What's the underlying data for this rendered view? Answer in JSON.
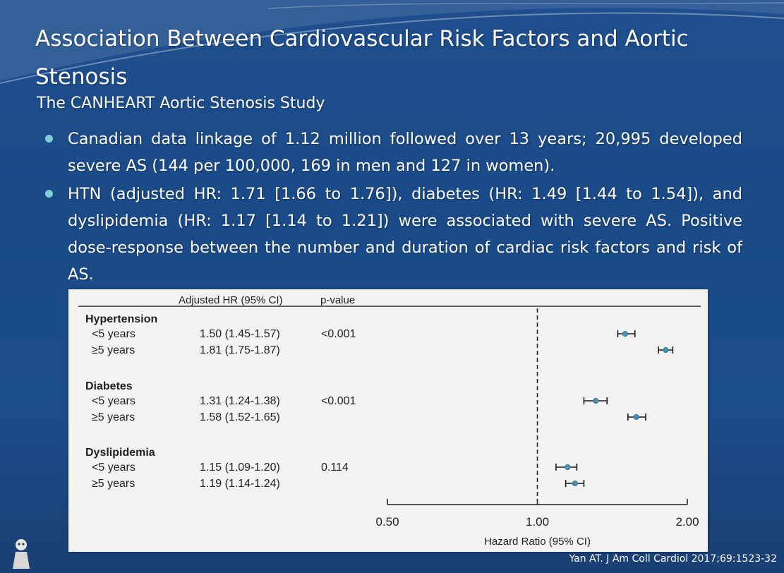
{
  "slide": {
    "title": "Association Between Cardiovascular Risk Factors and Aortic Stenosis",
    "subtitle": "The CANHEART Aortic Stenosis Study",
    "bullets": [
      "Canadian data linkage of 1.12 million followed over 13 years; 20,995 developed severe AS (144 per 100,000, 169 in men and 127 in women).",
      "HTN (adjusted HR: 1.71 [1.66 to 1.76]), diabetes (HR: 1.49 [1.44 to 1.54]), and dyslipidemia (HR: 1.17 [1.14 to 1.21]) were associated with severe AS. Positive dose-response between the number and duration of cardiac risk factors and risk of AS."
    ],
    "citation": "Yan AT. J Am Coll Cardiol 2017;69:1523-32",
    "bullet_color": "#7fd0d6"
  },
  "forest": {
    "header_hr": "Adjusted HR (95% CI)",
    "header_p": "p-value",
    "x_title": "Hazard Ratio (95% CI)",
    "x_ticks": [
      "0.50",
      "1.00",
      "2.00"
    ],
    "x_tick_values": [
      0.5,
      1.0,
      2.0
    ],
    "x_scale": "log",
    "x_range": [
      0.5,
      2.0
    ],
    "reference_value": 1.0,
    "marker_color": "#4a90b8",
    "groups": [
      {
        "name": "Hypertension",
        "p_value": "<0.001",
        "rows": [
          {
            "label": "<5 years",
            "ci_text": "1.50 (1.45-1.57)",
            "hr": 1.5,
            "lo": 1.45,
            "hi": 1.57
          },
          {
            "label": "≥5 years",
            "ci_text": "1.81 (1.75-1.87)",
            "hr": 1.81,
            "lo": 1.75,
            "hi": 1.87
          }
        ]
      },
      {
        "name": "Diabetes",
        "p_value": "<0.001",
        "rows": [
          {
            "label": "<5 years",
            "ci_text": "1.31 (1.24-1.38)",
            "hr": 1.31,
            "lo": 1.24,
            "hi": 1.38
          },
          {
            "label": "≥5 years",
            "ci_text": "1.58 (1.52-1.65)",
            "hr": 1.58,
            "lo": 1.52,
            "hi": 1.65
          }
        ]
      },
      {
        "name": "Dyslipidemia",
        "p_value": "0.114",
        "rows": [
          {
            "label": "<5 years",
            "ci_text": "1.15 (1.09-1.20)",
            "hr": 1.15,
            "lo": 1.09,
            "hi": 1.2
          },
          {
            "label": "≥5 years",
            "ci_text": "1.19 (1.14-1.24)",
            "hr": 1.19,
            "lo": 1.14,
            "hi": 1.24
          }
        ]
      }
    ]
  },
  "chart_data": {
    "type": "forest",
    "categories": [
      "Hypertension <5 years",
      "Hypertension ≥5 years",
      "Diabetes <5 years",
      "Diabetes ≥5 years",
      "Dyslipidemia <5 years",
      "Dyslipidemia ≥5 years"
    ],
    "values": [
      1.5,
      1.81,
      1.31,
      1.58,
      1.15,
      1.19
    ],
    "ci_low": [
      1.45,
      1.75,
      1.24,
      1.52,
      1.09,
      1.14
    ],
    "ci_high": [
      1.57,
      1.87,
      1.38,
      1.65,
      1.2,
      1.24
    ],
    "xlabel": "Hazard Ratio (95% CI)",
    "xlim": [
      0.5,
      2.0
    ],
    "x_scale": "log",
    "x_ticks": [
      0.5,
      1.0,
      2.0
    ],
    "reference_line": 1.0,
    "grid": false
  }
}
